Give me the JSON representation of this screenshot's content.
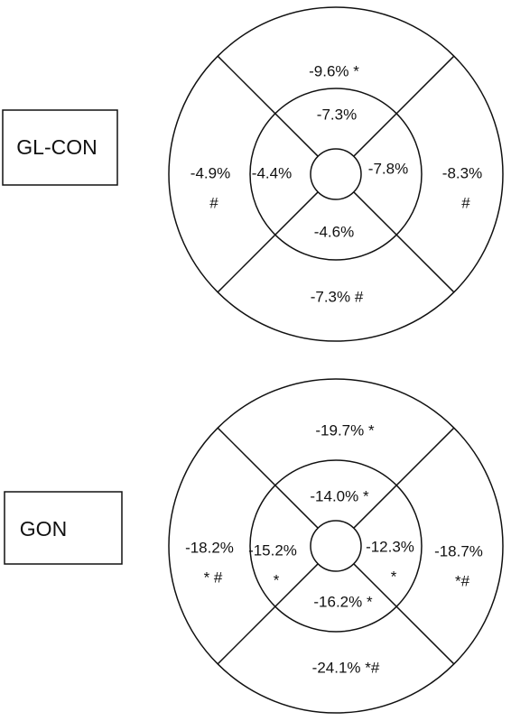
{
  "panels": [
    {
      "label": "GL-CON",
      "regions": [
        {
          "lines": [
            "-9.6% *"
          ]
        },
        {
          "lines": [
            "-7.3%"
          ]
        },
        {
          "lines": [
            "-4.9%",
            "#"
          ]
        },
        {
          "lines": [
            "-4.4%"
          ]
        },
        {
          "lines": [
            "-7.8%"
          ]
        },
        {
          "lines": [
            "-8.3%",
            "#"
          ]
        },
        {
          "lines": [
            "-4.6%"
          ]
        },
        {
          "lines": [
            "-7.3% #"
          ]
        }
      ]
    },
    {
      "label": "GON",
      "regions": [
        {
          "lines": [
            "-19.7% *"
          ]
        },
        {
          "lines": [
            "-14.0% *"
          ]
        },
        {
          "lines": [
            "-18.2%",
            "* #"
          ]
        },
        {
          "lines": [
            "-15.2%",
            "*"
          ]
        },
        {
          "lines": [
            "-12.3%",
            "*"
          ]
        },
        {
          "lines": [
            "-18.7%",
            "*#"
          ]
        },
        {
          "lines": [
            "-16.2% *"
          ]
        },
        {
          "lines": [
            "-24.1% *#"
          ]
        }
      ]
    }
  ]
}
